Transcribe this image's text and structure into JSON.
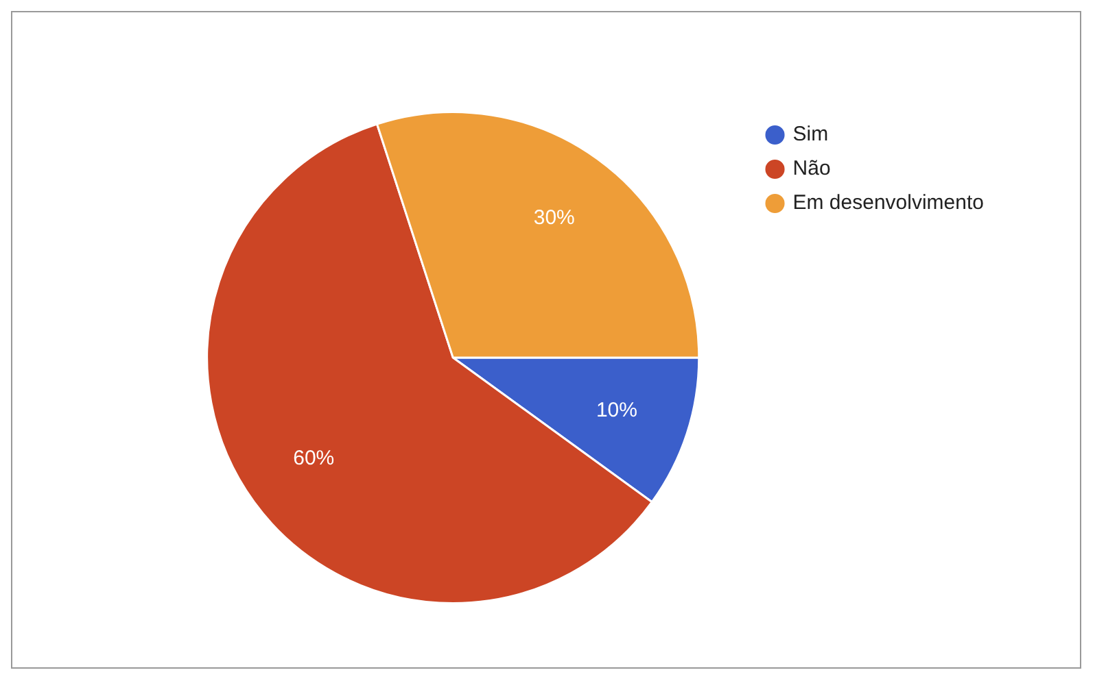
{
  "chart_data": {
    "type": "pie",
    "categories": [
      "Sim",
      "Não",
      "Em desenvolvimento"
    ],
    "values": [
      10,
      60,
      30
    ],
    "colors": [
      "#3b5fcb",
      "#cc4525",
      "#ee9d38"
    ],
    "value_labels": [
      "10%",
      "60%",
      "30%"
    ],
    "legend": "top right"
  }
}
